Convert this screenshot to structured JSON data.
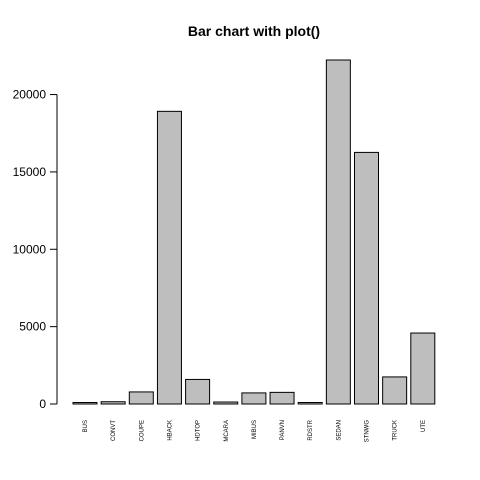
{
  "chart_data": {
    "type": "bar",
    "title": "Bar chart with plot()",
    "xlabel": "",
    "ylabel": "",
    "categories": [
      "BUS",
      "CONVT",
      "COUPE",
      "HBACK",
      "HDTOP",
      "MCARA",
      "MIBUS",
      "PANVN",
      "RDSTR",
      "SEDAN",
      "STNWG",
      "TRUCK",
      "UTE"
    ],
    "values": [
      48,
      146,
      780,
      18915,
      1588,
      127,
      717,
      752,
      27,
      22233,
      16261,
      1750,
      4586
    ],
    "yticks": [
      "0",
      "5000",
      "10000",
      "15000",
      "20000"
    ],
    "ylim": [
      0,
      22233
    ],
    "grid": false,
    "legend": "none",
    "bar_fill": "#BEBEBE",
    "bar_stroke": "#000000"
  }
}
